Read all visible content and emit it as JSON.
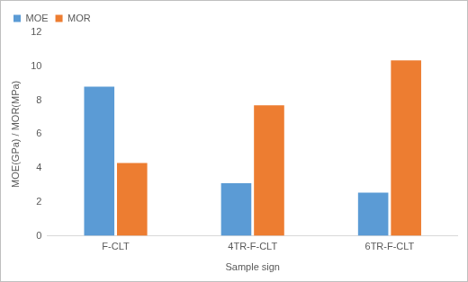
{
  "chart_data": {
    "type": "bar",
    "categories": [
      "F-CLT",
      "4TR-F-CLT",
      "6TR-F-CLT"
    ],
    "series": [
      {
        "name": "MOE",
        "color": "#5b9bd5",
        "values": [
          8.8,
          3.1,
          2.55
        ]
      },
      {
        "name": "MOR",
        "color": "#ed7d31",
        "values": [
          4.3,
          7.7,
          10.35
        ]
      }
    ],
    "x_label": "Sample sign",
    "y_label": "MOE(GPa) / MOR(MPa)",
    "ylim": [
      0,
      12
    ],
    "yticks": [
      0,
      2,
      4,
      6,
      8,
      10,
      12
    ],
    "grid": false,
    "legend": "top-left"
  }
}
